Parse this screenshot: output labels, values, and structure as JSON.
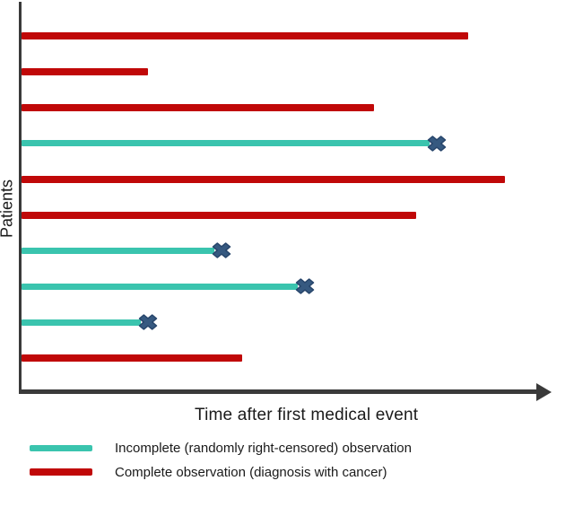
{
  "figure": {
    "title": "",
    "ylabel": "Patients",
    "xlabel": "Time after first medical event"
  },
  "legend": {
    "items": [
      {
        "key": "censored",
        "label": "Incomplete (randomly right-censored) observation",
        "color": "#3ac4ae"
      },
      {
        "key": "complete",
        "label": "Complete observation (diagnosis with cancer)",
        "color": "#c00808"
      }
    ]
  },
  "colors": {
    "censored": "#3ac4ae",
    "complete": "#c00808",
    "marker_fill": "#365980",
    "marker_stroke": "#27456b",
    "axis": "#3a3a3a",
    "text": "#1a1a1a"
  },
  "chart_data": {
    "type": "bar",
    "subtype": "horizontal-observation-timeline",
    "title": "",
    "xlabel": "Time after first medical event",
    "ylabel": "Patients",
    "x_axis": {
      "labeled_ticks": false,
      "arrow": true,
      "units": "relative duration, 0-100 = fraction of drawn axis length"
    },
    "y_axis": {
      "labeled_ticks": false,
      "categories": "patients 1-10, top to bottom"
    },
    "censor_marker": {
      "shape": "heavy-x",
      "meaning": "right-censoring time"
    },
    "patients": [
      {
        "patient": 1,
        "observation": "complete",
        "duration": 85
      },
      {
        "patient": 2,
        "observation": "complete",
        "duration": 24
      },
      {
        "patient": 3,
        "observation": "complete",
        "duration": 67
      },
      {
        "patient": 4,
        "observation": "censored",
        "duration": 79
      },
      {
        "patient": 5,
        "observation": "complete",
        "duration": 92
      },
      {
        "patient": 6,
        "observation": "complete",
        "duration": 75
      },
      {
        "patient": 7,
        "observation": "censored",
        "duration": 38
      },
      {
        "patient": 8,
        "observation": "censored",
        "duration": 54
      },
      {
        "patient": 9,
        "observation": "censored",
        "duration": 24
      },
      {
        "patient": 10,
        "observation": "complete",
        "duration": 42
      }
    ]
  }
}
